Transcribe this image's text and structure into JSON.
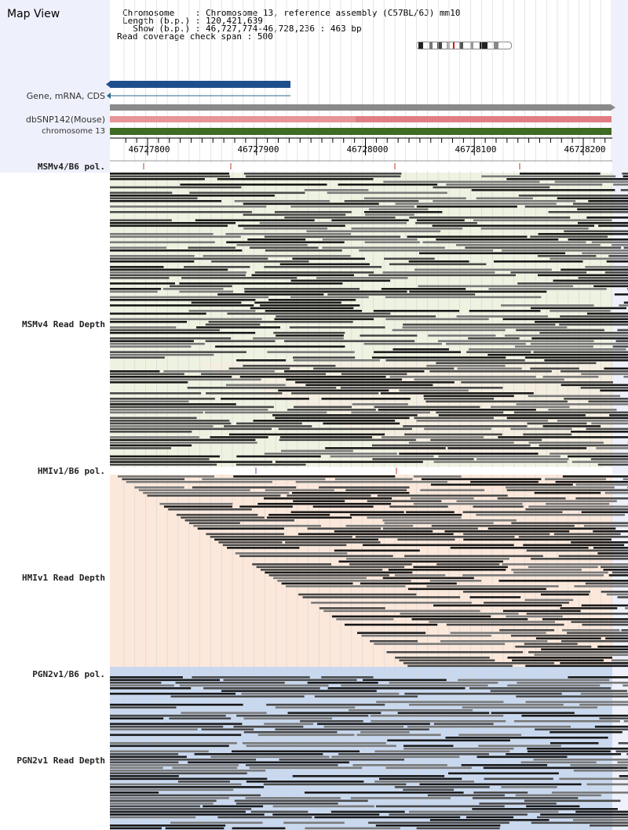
{
  "view": {
    "title": "Map View",
    "info": [
      {
        "label": "Chromosome    ",
        "value": "Chromosome 13, reference assembly (C57BL/6J) mm10"
      },
      {
        "label": "Length (b.p.) ",
        "value": "120,421,639"
      },
      {
        "label": "  Show (b.p.) ",
        "value": "46,727,774-46,728,236 : 463 bp"
      }
    ],
    "coverage_label": "Read coverage check span",
    "coverage_value": "500"
  },
  "tracks": {
    "gene": "Gene, mRNA, CDS",
    "dbsnp": "dbSNP142(Mouse)",
    "chromosome": "chromosome 13"
  },
  "ruler": {
    "ticks": [
      "46727800",
      "46727900",
      "46728000",
      "46728100",
      "46728200"
    ]
  },
  "samples": [
    {
      "pol_label": "MSMv4/B6 pol.",
      "depth_label": "MSMv4 Read Depth",
      "bg_color": "#eef2e1",
      "alt_color": "#f9ebe0"
    },
    {
      "pol_label": "HMIv1/B6 pol.",
      "depth_label": "HMIv1 Read Depth",
      "bg_color": "#fbe8db"
    },
    {
      "pol_label": "PGN2v1/B6 pol.",
      "depth_label": "PGN2v1 Read Depth",
      "bg_color": "#c8d8ef"
    }
  ],
  "colors": {
    "gene_bar": "#1f4e8c",
    "dbsnp_bar": "#e79497",
    "chromosome_bar": "#3f6b24",
    "variant_tick": "#c0392b",
    "read_dark": "#1a1a1a",
    "read_mid": "#4a4a4a",
    "read_light": "#7a7a7a"
  }
}
